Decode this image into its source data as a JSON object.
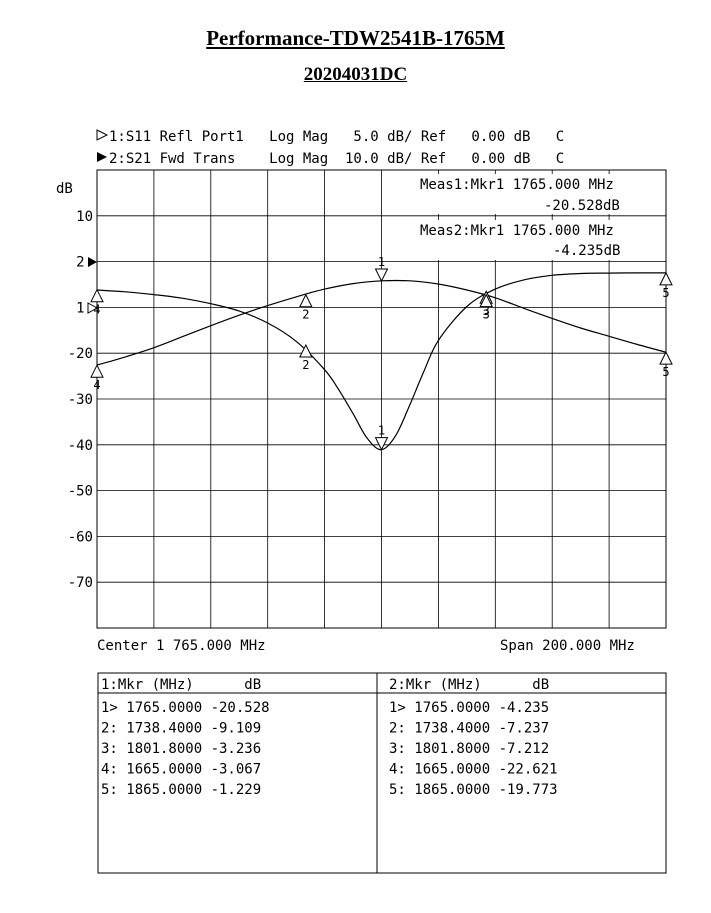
{
  "title": "Performance-TDW2541B-1765M",
  "subtitle": "20204031DC",
  "header": {
    "ch1": "1:S11 Refl Port1   Log Mag   5.0 dB/ Ref   0.00 dB   C",
    "ch2": "2:S21 Fwd Trans    Log Mag  10.0 dB/ Ref   0.00 dB   C"
  },
  "meas": {
    "meas1_line1": "Meas1:Mkr1 1765.000 MHz",
    "meas1_line2": "-20.528dB",
    "meas2_line1": "Meas2:Mkr1 1765.000 MHz",
    "meas2_line2": "-4.235dB"
  },
  "footer": {
    "center": "Center 1 765.000 MHz",
    "span": "Span 200.000 MHz"
  },
  "chart_data": {
    "type": "line",
    "ylabel": "dB",
    "y_tick_labels": [
      "10",
      "2:",
      "1:",
      "-20",
      "-30",
      "-40",
      "-50",
      "-60",
      "-70"
    ],
    "x_range_mhz": [
      1665,
      1865
    ],
    "ylim_ch2": [
      -80,
      20
    ],
    "ylim_ch1": [
      -40,
      10
    ],
    "grid": true,
    "series": [
      {
        "name": "1:S11 Refl Port1",
        "x": [
          1665,
          1675,
          1685,
          1695,
          1705,
          1715,
          1725,
          1735,
          1745,
          1750,
          1755,
          1760,
          1765,
          1770,
          1775,
          1780,
          1785,
          1795,
          1805,
          1815,
          1825,
          1835,
          1845,
          1855,
          1865
        ],
        "values": [
          -3.1,
          -3.3,
          -3.6,
          -4.0,
          -4.6,
          -5.4,
          -6.7,
          -8.7,
          -11.8,
          -14.0,
          -16.6,
          -19.3,
          -20.53,
          -19.0,
          -15.6,
          -11.9,
          -8.6,
          -4.9,
          -3.0,
          -2.0,
          -1.5,
          -1.3,
          -1.25,
          -1.23,
          -1.23
        ]
      },
      {
        "name": "2:S21 Fwd Trans",
        "x": [
          1665,
          1675,
          1685,
          1695,
          1705,
          1715,
          1725,
          1735,
          1745,
          1755,
          1765,
          1775,
          1785,
          1795,
          1805,
          1815,
          1825,
          1835,
          1845,
          1855,
          1865
        ],
        "values": [
          -22.6,
          -20.8,
          -18.8,
          -16.4,
          -14.0,
          -11.7,
          -9.6,
          -7.7,
          -6.0,
          -4.8,
          -4.2,
          -4.2,
          -4.9,
          -6.2,
          -7.9,
          -10.2,
          -12.4,
          -14.5,
          -16.3,
          -18.1,
          -19.8
        ]
      }
    ],
    "markers_ch1": [
      {
        "id": "1",
        "freq": 1765.0,
        "value": -20.528
      },
      {
        "id": "2",
        "freq": 1738.4,
        "value": -9.109
      },
      {
        "id": "3",
        "freq": 1801.8,
        "value": -3.236
      },
      {
        "id": "4",
        "freq": 1665.0,
        "value": -3.067
      },
      {
        "id": "5",
        "freq": 1865.0,
        "value": -1.229
      }
    ],
    "markers_ch2": [
      {
        "id": "1",
        "freq": 1765.0,
        "value": -4.235
      },
      {
        "id": "2",
        "freq": 1738.4,
        "value": -7.237
      },
      {
        "id": "3",
        "freq": 1801.8,
        "value": -7.212
      },
      {
        "id": "4",
        "freq": 1665.0,
        "value": -22.621
      },
      {
        "id": "5",
        "freq": 1865.0,
        "value": -19.773
      }
    ]
  },
  "marker_table": {
    "ch1_header": "1:Mkr (MHz)      dB",
    "ch2_header": "2:Mkr (MHz)      dB",
    "ch1_rows": [
      "1> 1765.0000  -20.528",
      "2: 1738.4000   -9.109",
      "3: 1801.8000   -3.236",
      "4: 1665.0000   -3.067",
      "5: 1865.0000   -1.229"
    ],
    "ch2_rows": [
      "1> 1765.0000   -4.235",
      "2: 1738.4000   -7.237",
      "3: 1801.8000   -7.212",
      "4: 1665.0000  -22.621",
      "5: 1865.0000  -19.773"
    ]
  }
}
